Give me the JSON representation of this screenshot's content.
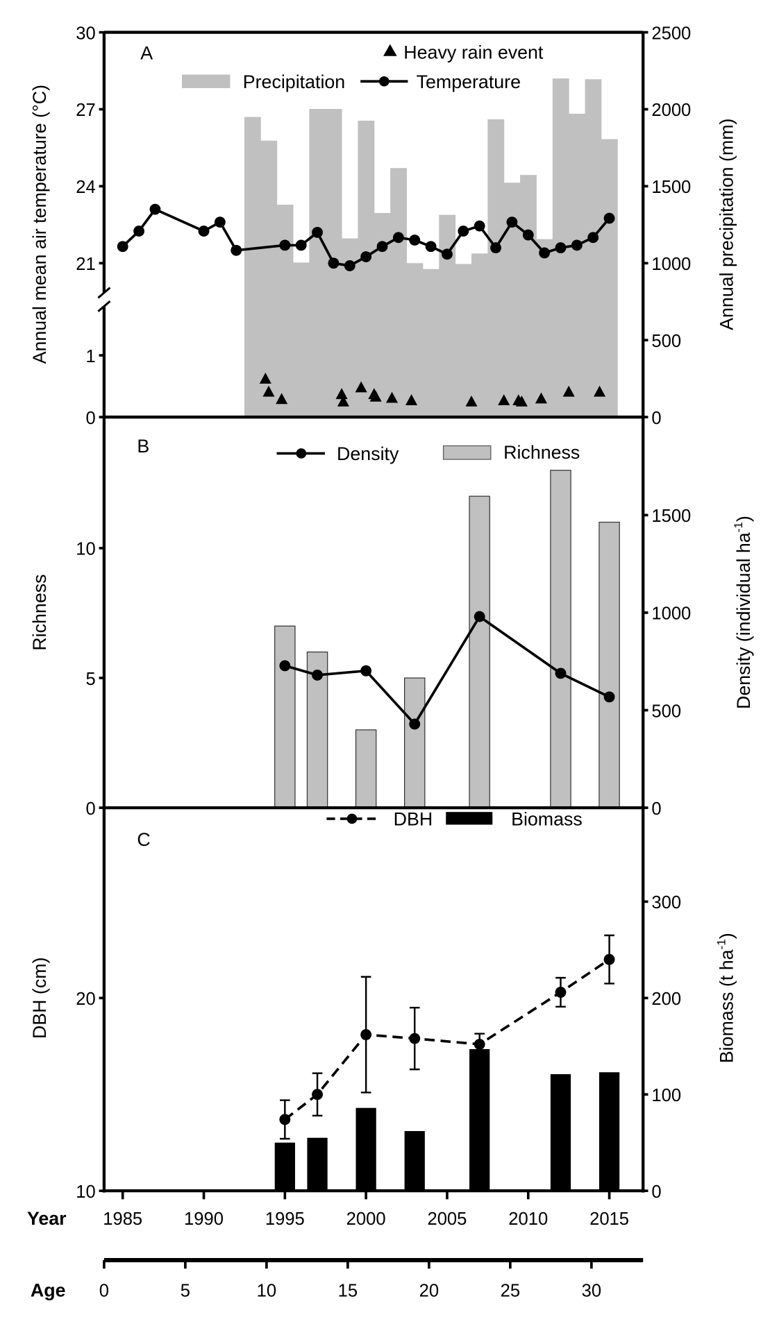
{
  "colors": {
    "precip": "#c0c0c0",
    "richness": "#c0c0c0",
    "biomass": "#000000",
    "line": "#000000"
  },
  "chart_data": [
    {
      "panel": "A",
      "type": "bar+line+scatter",
      "ylabel_left": "Annual mean air temperature (°C)",
      "ylabel_right": "Annual precipitation (mm)",
      "yticks_left_upper": [
        "30",
        "27",
        "24",
        "21"
      ],
      "yticks_left_lower": [
        "1",
        "0"
      ],
      "yticks_right": [
        "2500",
        "2000",
        "1500",
        "1000",
        "500",
        "0"
      ],
      "ylim_left_upper": [
        21,
        30
      ],
      "ylim_left_lower": [
        0,
        1
      ],
      "axis_break": true,
      "ylim_right": [
        0,
        2500
      ],
      "legend": {
        "heavy_rain": "Heavy rain event",
        "precip": "Precipitation",
        "temp": "Temperature"
      },
      "temperature": {
        "x": [
          1985,
          1986,
          1987,
          1990,
          1991,
          1992,
          1995,
          1996,
          1997,
          1998,
          1999,
          2000,
          2001,
          2002,
          2003,
          2004,
          2005,
          2006,
          2007,
          2008,
          2009,
          2010,
          2011,
          2012,
          2013,
          2014,
          2015
        ],
        "y": [
          21.65,
          22.25,
          23.1,
          22.25,
          22.6,
          21.5,
          21.7,
          21.7,
          22.2,
          21.0,
          20.9,
          21.25,
          21.65,
          22.0,
          21.9,
          21.65,
          21.35,
          22.25,
          22.45,
          21.6,
          22.6,
          22.1,
          21.4,
          21.6,
          21.7,
          22.0,
          22.75
        ]
      },
      "precipitation": {
        "x": [
          1993,
          1994,
          1995,
          1996,
          1997,
          1998,
          1999,
          2000,
          2001,
          2002,
          2003,
          2004,
          2005,
          2006,
          2007,
          2008,
          2009,
          2010,
          2011,
          2012,
          2013,
          2014,
          2015
        ],
        "y": [
          1950,
          1796,
          1380,
          1004,
          2002,
          2002,
          1161,
          1926,
          1326,
          1618,
          1000,
          962,
          1314,
          995,
          1063,
          1935,
          1523,
          1573,
          1156,
          2200,
          1971,
          2195,
          1806
        ]
      },
      "heavy_rain_events": {
        "x": [
          1993.8,
          1994.0,
          1994.8,
          1998.5,
          1998.6,
          1999.7,
          2000.5,
          2000.6,
          2001.6,
          2002.8,
          2006.5,
          2008.5,
          2009.4,
          2009.6,
          2010.8,
          2012.5,
          2014.4
        ],
        "y": [
          0.61,
          0.4,
          0.28,
          0.36,
          0.24,
          0.47,
          0.36,
          0.32,
          0.3,
          0.26,
          0.24,
          0.26,
          0.26,
          0.24,
          0.29,
          0.4,
          0.4
        ]
      }
    },
    {
      "panel": "B",
      "type": "bar+line",
      "ylabel_left": "Richness",
      "ylabel_right": "Density (individual ha",
      "ylabel_right_sup": "-1",
      "ylabel_right_end": ")",
      "yticks_left": [
        "0",
        "5",
        "10"
      ],
      "yticks_right": [
        "0",
        "500",
        "1000",
        "1500"
      ],
      "ylim_left": [
        0,
        15
      ],
      "ylim_right": [
        0,
        2000
      ],
      "legend": {
        "density": "Density",
        "richness": "Richness"
      },
      "x": [
        1995,
        1997,
        2000,
        2003,
        2007,
        2012,
        2015
      ],
      "richness": [
        7,
        6,
        3,
        5,
        12,
        13,
        11
      ],
      "density": [
        728,
        680,
        702,
        429,
        980,
        689,
        568
      ]
    },
    {
      "panel": "C",
      "type": "bar+line",
      "ylabel_left": "DBH (cm)",
      "ylabel_right": "Biomass (t ha",
      "ylabel_right_sup": "-1",
      "ylabel_right_end": ")",
      "yticks_left": [
        "10",
        "20"
      ],
      "yticks_right": [
        "0",
        "100",
        "200",
        "300"
      ],
      "ylim_left": [
        10,
        30
      ],
      "ylim_right": [
        0,
        400
      ],
      "legend": {
        "dbh": "DBH",
        "biomass": "Biomass"
      },
      "x": [
        1995,
        1997,
        2000,
        2003,
        2007,
        2012,
        2015
      ],
      "dbh": [
        13.7,
        15.0,
        18.1,
        17.9,
        17.6,
        20.3,
        22.0
      ],
      "dbh_err": [
        1.0,
        1.1,
        3.0,
        1.6,
        0.55,
        0.75,
        1.25
      ],
      "biomass": [
        50,
        55,
        86,
        62,
        147,
        121,
        123
      ]
    }
  ],
  "x_axis": {
    "label": "Year",
    "ticks": [
      "1985",
      "1990",
      "1995",
      "2000",
      "2005",
      "2010",
      "2015"
    ]
  },
  "age_axis": {
    "label": "Age",
    "ticks": [
      "0",
      "5",
      "10",
      "15",
      "20",
      "25",
      "30"
    ]
  }
}
